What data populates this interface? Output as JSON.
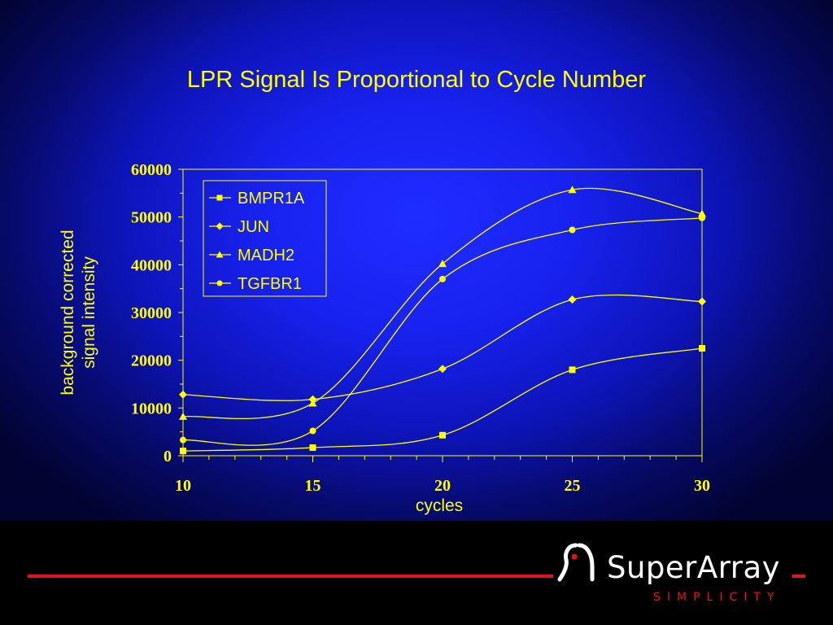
{
  "slide": {
    "title": "LPR Signal Is Proportional to Cycle Number"
  },
  "colors": {
    "accent": "#ffff00",
    "footer_line": "#e0141b",
    "background": "#1822f0"
  },
  "logo": {
    "name": "SuperArray",
    "tagline": "SIMPLICITY"
  },
  "chart_data": {
    "type": "line",
    "title": "",
    "xlabel": "cycles",
    "ylabel": "background corrected\nsignal intensity",
    "x": [
      10,
      15,
      20,
      25,
      30
    ],
    "xticks": [
      "10",
      "15",
      "20",
      "25",
      "30"
    ],
    "yticks": [
      "0",
      "10000",
      "20000",
      "30000",
      "40000",
      "50000",
      "60000"
    ],
    "xlim": [
      10,
      30
    ],
    "ylim": [
      0,
      60000
    ],
    "grid": false,
    "legend_position": "top-left",
    "smoothed": true,
    "series": [
      {
        "name": "BMPR1A",
        "marker": "square",
        "values": [
          1000,
          1700,
          4300,
          18000,
          22500
        ]
      },
      {
        "name": "JUN",
        "marker": "diamond",
        "values": [
          12800,
          11800,
          18200,
          32700,
          32300
        ]
      },
      {
        "name": "MADH2",
        "marker": "triangle",
        "values": [
          8200,
          11000,
          40200,
          55700,
          50700
        ]
      },
      {
        "name": "TGFBR1",
        "marker": "circle",
        "values": [
          3300,
          5200,
          37000,
          47300,
          49800
        ]
      }
    ]
  }
}
